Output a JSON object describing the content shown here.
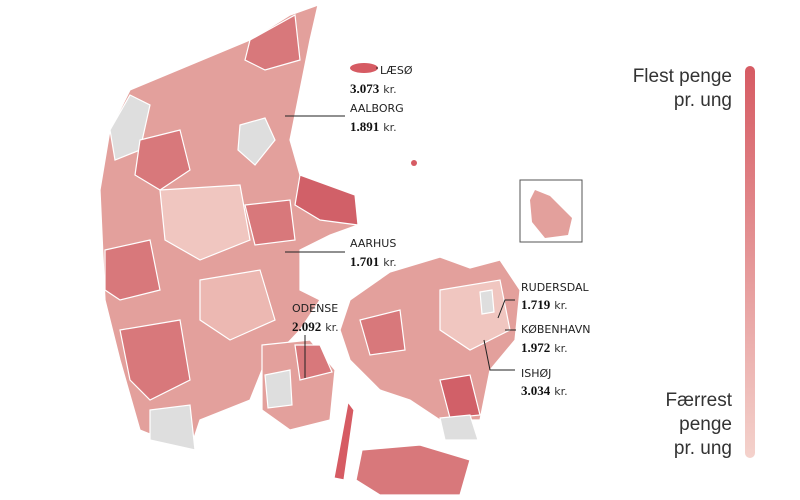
{
  "annotations": [
    {
      "name": "LÆSØ",
      "amount": "3.073",
      "unit": "kr."
    },
    {
      "name": "AALBORG",
      "amount": "1.891",
      "unit": "kr."
    },
    {
      "name": "AARHUS",
      "amount": "1.701",
      "unit": "kr."
    },
    {
      "name": "ODENSE",
      "amount": "2.092",
      "unit": "kr."
    },
    {
      "name": "RUDERSDAL",
      "amount": "1.719",
      "unit": "kr."
    },
    {
      "name": "KØBENHAVN",
      "amount": "1.972",
      "unit": "kr."
    },
    {
      "name": "ISHØJ",
      "amount": "3.034",
      "unit": "kr."
    }
  ],
  "legend": {
    "top": [
      "Flest penge",
      "pr. ung"
    ],
    "bottom": [
      "Færrest",
      "penge",
      "pr. ung"
    ]
  }
}
